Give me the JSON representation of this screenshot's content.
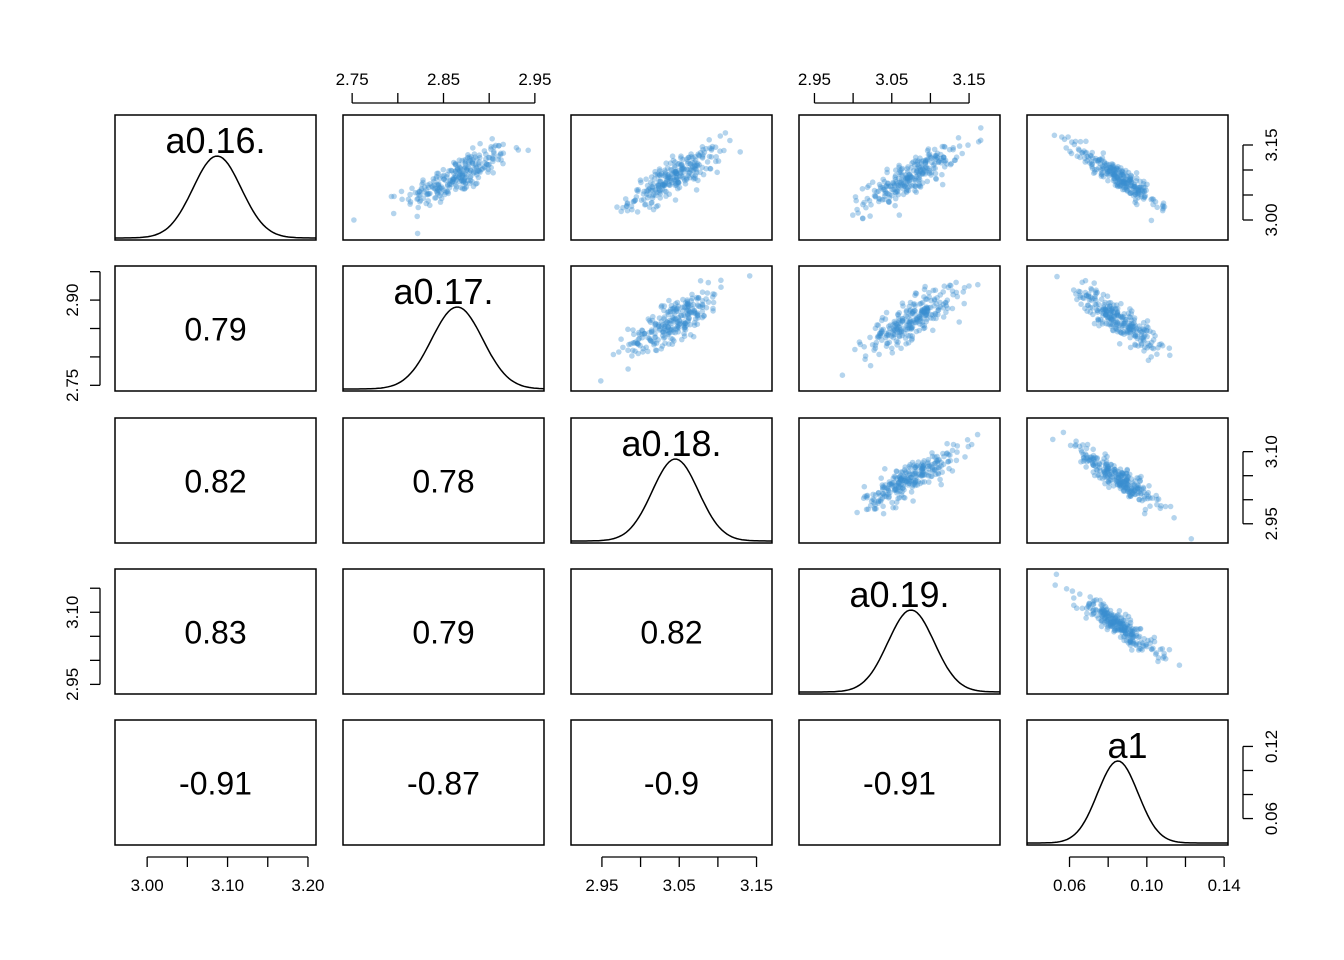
{
  "chart_data": {
    "type": "scatter",
    "variables": [
      "a0.16.",
      "a0.17.",
      "a0.18.",
      "a0.19.",
      "a1"
    ],
    "centers": [
      3.087,
      2.865,
      3.045,
      3.075,
      0.085
    ],
    "sds": [
      0.03,
      0.028,
      0.03,
      0.03,
      0.0105
    ],
    "ranges": [
      [
        2.96,
        3.21
      ],
      [
        2.74,
        2.96
      ],
      [
        2.91,
        3.17
      ],
      [
        2.93,
        3.19
      ],
      [
        0.038,
        0.142
      ]
    ],
    "axis_ticks": [
      {
        "values": [
          3.0,
          3.05,
          3.1,
          3.15,
          3.2
        ],
        "labels": [
          "3.00",
          "",
          "3.10",
          "",
          "3.20"
        ]
      },
      {
        "values": [
          2.75,
          2.8,
          2.85,
          2.9,
          2.95
        ],
        "labels": [
          "2.75",
          "",
          "2.85",
          "",
          "2.95"
        ]
      },
      {
        "values": [
          2.95,
          3.0,
          3.05,
          3.1,
          3.15
        ],
        "labels": [
          "2.95",
          "",
          "3.05",
          "",
          "3.15"
        ]
      },
      {
        "values": [
          2.95,
          3.0,
          3.05,
          3.1,
          3.15
        ],
        "labels": [
          "2.95",
          "",
          "3.05",
          "",
          "3.15"
        ]
      },
      {
        "values": [
          0.06,
          0.08,
          0.1,
          0.12,
          0.14
        ],
        "labels": [
          "0.06",
          "",
          "0.10",
          "",
          "0.14"
        ]
      }
    ],
    "left_axis_ticks": [
      null,
      {
        "values": [
          2.75,
          2.8,
          2.85,
          2.9,
          2.95
        ],
        "labels": [
          "2.75",
          "",
          "",
          "2.90",
          ""
        ]
      },
      null,
      {
        "values": [
          2.95,
          3.0,
          3.05,
          3.1,
          3.15
        ],
        "labels": [
          "2.95",
          "",
          "",
          "3.10",
          ""
        ]
      },
      null
    ],
    "right_axis_ticks": [
      {
        "values": [
          3.0,
          3.05,
          3.1,
          3.15
        ],
        "labels": [
          "3.00",
          "",
          "",
          "3.15"
        ]
      },
      null,
      {
        "values": [
          2.95,
          3.0,
          3.05,
          3.1
        ],
        "labels": [
          "2.95",
          "",
          "",
          "3.10"
        ]
      },
      null,
      {
        "values": [
          0.06,
          0.08,
          0.1,
          0.12
        ],
        "labels": [
          "0.06",
          "",
          "",
          "0.12"
        ]
      }
    ],
    "correlations": [
      {
        "row": 1,
        "col": 0,
        "label": "0.79"
      },
      {
        "row": 2,
        "col": 0,
        "label": "0.82"
      },
      {
        "row": 2,
        "col": 1,
        "label": "0.78"
      },
      {
        "row": 3,
        "col": 0,
        "label": "0.83"
      },
      {
        "row": 3,
        "col": 1,
        "label": "0.79"
      },
      {
        "row": 3,
        "col": 2,
        "label": "0.82"
      },
      {
        "row": 4,
        "col": 0,
        "label": "-0.91"
      },
      {
        "row": 4,
        "col": 1,
        "label": "-0.87"
      },
      {
        "row": 4,
        "col": 2,
        "label": "-0.9"
      },
      {
        "row": 4,
        "col": 3,
        "label": "-0.91"
      }
    ],
    "point_color": "#3a8fd0",
    "density_color": "#000000",
    "points_per_panel": 260
  }
}
